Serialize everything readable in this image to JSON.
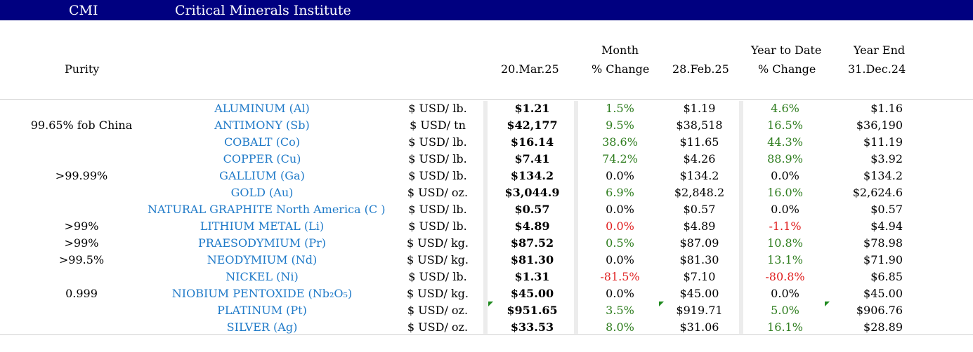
{
  "header": {
    "abbr": "CMI",
    "name": "Critical Minerals Institute"
  },
  "columns": {
    "purity": "Purity",
    "current_date": "20.Mar.25",
    "month_top": "Month",
    "month_bottom": "% Change",
    "prev_date": "28.Feb.25",
    "ytd_top": "Year to Date",
    "ytd_bottom": "% Change",
    "yend_top": "Year End",
    "yend_bottom": "31.Dec.24"
  },
  "colors": {
    "title_bar": "#000080",
    "mineral_text": "#1f7ac8",
    "positive": "#2e7d1e",
    "negative": "#e02020"
  },
  "rows": [
    {
      "purity": "",
      "mineral": "ALUMINUM (Al)",
      "unit": "$ USD/ lb.",
      "current": "$1.21",
      "month_change": "1.5%",
      "month_sign": "pos",
      "prev": "$1.19",
      "ytd_change": "4.6%",
      "ytd_sign": "pos",
      "year_end": "$1.16"
    },
    {
      "purity": "99.65% fob China",
      "mineral": "ANTIMONY (Sb)",
      "unit": "$ USD/ tn",
      "current": "$42,177",
      "month_change": "9.5%",
      "month_sign": "pos",
      "prev": "$38,518",
      "ytd_change": "16.5%",
      "ytd_sign": "pos",
      "year_end": "$36,190"
    },
    {
      "purity": "",
      "mineral": "COBALT (Co)",
      "unit": "$ USD/ lb.",
      "current": "$16.14",
      "month_change": "38.6%",
      "month_sign": "pos",
      "prev": "$11.65",
      "ytd_change": "44.3%",
      "ytd_sign": "pos",
      "year_end": "$11.19"
    },
    {
      "purity": "",
      "mineral": "COPPER (Cu)",
      "unit": "$ USD/ lb.",
      "current": "$7.41",
      "month_change": "74.2%",
      "month_sign": "pos",
      "prev": "$4.26",
      "ytd_change": "88.9%",
      "ytd_sign": "pos",
      "year_end": "$3.92"
    },
    {
      "purity": ">99.99%",
      "mineral": "GALLIUM (Ga)",
      "unit": "$ USD/ lb.",
      "current": "$134.2",
      "month_change": "0.0%",
      "month_sign": "zero",
      "prev": "$134.2",
      "ytd_change": "0.0%",
      "ytd_sign": "zero",
      "year_end": "$134.2"
    },
    {
      "purity": "",
      "mineral": "GOLD (Au)",
      "unit": "$ USD/ oz.",
      "current": "$3,044.9",
      "month_change": "6.9%",
      "month_sign": "pos",
      "prev": "$2,848.2",
      "ytd_change": "16.0%",
      "ytd_sign": "pos",
      "year_end": "$2,624.6"
    },
    {
      "purity": "",
      "mineral": "NATURAL GRAPHITE North America (C )",
      "unit": "$ USD/ lb.",
      "current": "$0.57",
      "month_change": "0.0%",
      "month_sign": "zero",
      "prev": "$0.57",
      "ytd_change": "0.0%",
      "ytd_sign": "zero",
      "year_end": "$0.57"
    },
    {
      "purity": ">99%",
      "mineral": "LITHIUM METAL (Li)",
      "unit": "$ USD/ lb.",
      "current": "$4.89",
      "month_change": "0.0%",
      "month_sign": "neg",
      "prev": "$4.89",
      "ytd_change": "-1.1%",
      "ytd_sign": "neg",
      "year_end": "$4.94"
    },
    {
      "purity": ">99%",
      "mineral": "PRAESODYMIUM (Pr)",
      "unit": "$ USD/ kg.",
      "current": "$87.52",
      "month_change": "0.5%",
      "month_sign": "pos",
      "prev": "$87.09",
      "ytd_change": "10.8%",
      "ytd_sign": "pos",
      "year_end": "$78.98"
    },
    {
      "purity": ">99.5%",
      "mineral": "NEODYMIUM (Nd)",
      "unit": "$ USD/ kg.",
      "current": "$81.30",
      "month_change": "0.0%",
      "month_sign": "zero",
      "prev": "$81.30",
      "ytd_change": "13.1%",
      "ytd_sign": "pos",
      "year_end": "$71.90"
    },
    {
      "purity": "",
      "mineral": "NICKEL (Ni)",
      "unit": "$ USD/ lb.",
      "current": "$1.31",
      "month_change": "-81.5%",
      "month_sign": "neg",
      "prev": "$7.10",
      "ytd_change": "-80.8%",
      "ytd_sign": "neg",
      "year_end": "$6.85"
    },
    {
      "purity": "0.999",
      "mineral": "NIOBIUM PENTOXIDE (Nb₂O₅)",
      "unit": "$ USD/ kg.",
      "current": "$45.00",
      "month_change": "0.0%",
      "month_sign": "zero",
      "prev": "$45.00",
      "ytd_change": "0.0%",
      "ytd_sign": "zero",
      "year_end": "$45.00"
    },
    {
      "purity": "",
      "mineral": "PLATINUM (Pt)",
      "unit": "$ USD/ oz.",
      "current": "$951.65",
      "month_change": "3.5%",
      "month_sign": "pos",
      "prev": "$919.71",
      "ytd_change": "5.0%",
      "ytd_sign": "pos",
      "year_end": "$906.76"
    },
    {
      "purity": "",
      "mineral": "SILVER (Ag)",
      "unit": "$ USD/ oz.",
      "current": "$33.53",
      "month_change": "8.0%",
      "month_sign": "pos",
      "prev": "$31.06",
      "ytd_change": "16.1%",
      "ytd_sign": "pos",
      "year_end": "$28.89"
    }
  ]
}
